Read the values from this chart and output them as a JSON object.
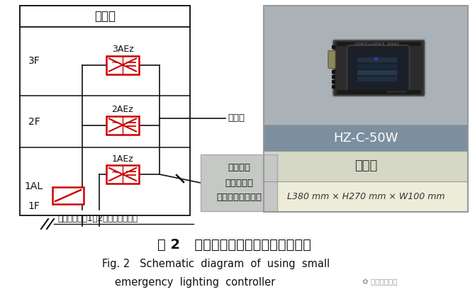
{
  "title_zh": "图 2   采用小型应急照明控制器示意图",
  "title_en_line1": "Fig. 2   Schematic  diagram  of  using  small",
  "title_en_line2": "emergency  lighting  controller",
  "watermark": "建筑电气杂志",
  "bg_color": "#ffffff",
  "hz_label": "HZ-C-50W",
  "biguashi_label": "壁挂式",
  "size_label": "L380 mm × H270 mm × W100 mm",
  "floor_labels": [
    "3F",
    "2F",
    "1AL",
    "1F"
  ],
  "circuit_labels": [
    "3AEz",
    "2AEz",
    "1AEz"
  ],
  "strong_well_label": "强电井",
  "communication_label": "通信线",
  "controller_label": "小型应急\n照明控制器\n（设置在值班室）",
  "bottom_label": "引自总配电箱1，2（常用、备用）",
  "red_color": "#cc0000",
  "black_color": "#111111",
  "gray_box_color": "#c5c8c5",
  "right_img_bg": "#aab2b8",
  "right_hz_bg": "#7c8f9e",
  "right_bq_bg": "#d4d8c4",
  "right_sz_bg": "#edecd8",
  "right_border": "#999999"
}
